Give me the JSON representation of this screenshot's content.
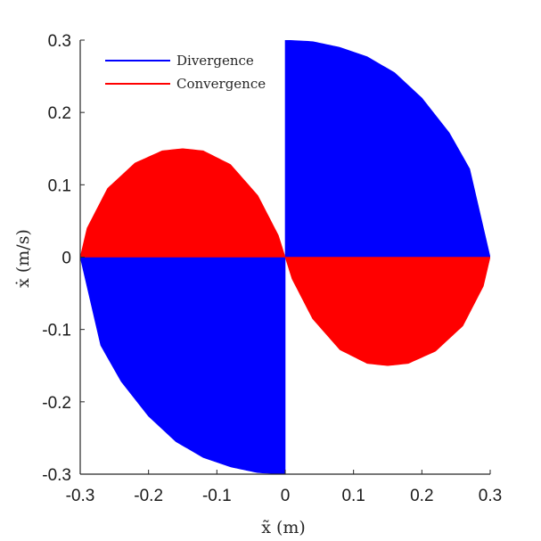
{
  "chart_data": {
    "type": "area",
    "xlabel": "x̃ (m)",
    "ylabel": "ẋ (m/s)",
    "xlim": [
      -0.3,
      0.3
    ],
    "ylim": [
      -0.3,
      0.3
    ],
    "x_ticks": [
      "-0.3",
      "-0.2",
      "-0.1",
      "0",
      "0.1",
      "0.2",
      "0.3"
    ],
    "y_ticks": [
      "0.3",
      "0.2",
      "0.1",
      "0",
      "-0.1",
      "-0.2",
      "-0.3"
    ],
    "x_tick_values": [
      -0.3,
      -0.2,
      -0.1,
      0,
      0.1,
      0.2,
      0.3
    ],
    "y_tick_values": [
      0.3,
      0.2,
      0.1,
      0,
      -0.1,
      -0.2,
      -0.3
    ],
    "legend_position": "top-left",
    "series": [
      {
        "name": "Divergence",
        "color": "#0000ff",
        "regions": [
          {
            "x": [
              0,
              0.04,
              0.08,
              0.12,
              0.16,
              0.2,
              0.24,
              0.27,
              0.3
            ],
            "y_lower": [
              0,
              0,
              0,
              0,
              0,
              0,
              0,
              0,
              0
            ],
            "y_upper": [
              0.3,
              0.298,
              0.29,
              0.277,
              0.255,
              0.22,
              0.172,
              0.122,
              0
            ]
          },
          {
            "x": [
              -0.3,
              -0.27,
              -0.24,
              -0.2,
              -0.16,
              -0.12,
              -0.08,
              -0.04,
              0
            ],
            "y_lower": [
              0,
              -0.122,
              -0.172,
              -0.22,
              -0.255,
              -0.277,
              -0.29,
              -0.298,
              -0.3
            ],
            "y_upper": [
              0,
              0,
              0,
              0,
              0,
              0,
              0,
              0,
              0
            ]
          }
        ]
      },
      {
        "name": "Convergence",
        "color": "#ff0000",
        "regions": [
          {
            "x": [
              -0.3,
              -0.29,
              -0.26,
              -0.22,
              -0.18,
              -0.15,
              -0.12,
              -0.08,
              -0.04,
              -0.01,
              0
            ],
            "y_lower": [
              0,
              0,
              0,
              0,
              0,
              0,
              0,
              0,
              0,
              0,
              0
            ],
            "y_upper": [
              0,
              0.04,
              0.095,
              0.13,
              0.147,
              0.15,
              0.147,
              0.128,
              0.085,
              0.03,
              0
            ]
          },
          {
            "x": [
              0,
              0.01,
              0.04,
              0.08,
              0.12,
              0.15,
              0.18,
              0.22,
              0.26,
              0.29,
              0.3
            ],
            "y_lower": [
              0,
              -0.03,
              -0.085,
              -0.128,
              -0.147,
              -0.15,
              -0.147,
              -0.13,
              -0.095,
              -0.04,
              0
            ],
            "y_upper": [
              0,
              0,
              0,
              0,
              0,
              0,
              0,
              0,
              0,
              0,
              0
            ]
          }
        ]
      }
    ]
  }
}
